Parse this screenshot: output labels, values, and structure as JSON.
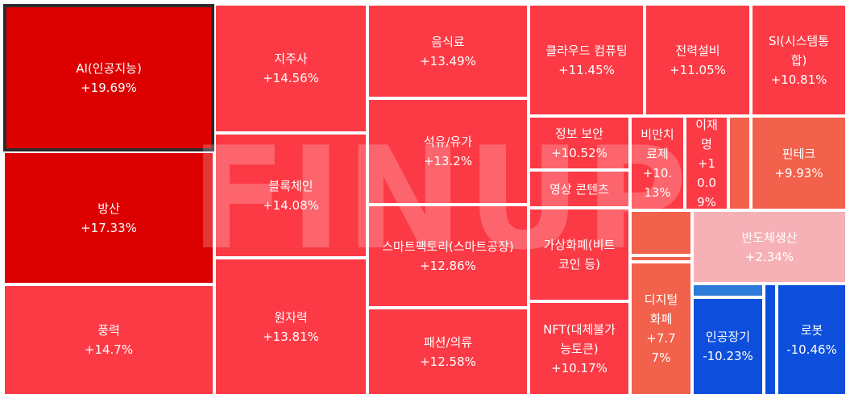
{
  "chart_data": {
    "type": "treemap",
    "watermark": "FINUP",
    "colors": {
      "up_strong": "#dc0000",
      "up": "#fc3a45",
      "up_mid": "#f2614b",
      "up_light": "#f6b1b6",
      "down": "#0d4fdc",
      "down_light": "#2d7bd8"
    },
    "items": [
      {
        "name": "AI(인공지능)",
        "value": "+19.69%",
        "color": "up_strong"
      },
      {
        "name": "방산",
        "value": "+17.33%",
        "color": "up_strong"
      },
      {
        "name": "풍력",
        "value": "+14.7%",
        "color": "up"
      },
      {
        "name": "지주사",
        "value": "+14.56%",
        "color": "up"
      },
      {
        "name": "블록체인",
        "value": "+14.08%",
        "color": "up"
      },
      {
        "name": "원자력",
        "value": "+13.81%",
        "color": "up"
      },
      {
        "name": "음식료",
        "value": "+13.49%",
        "color": "up"
      },
      {
        "name": "석유/유가",
        "value": "+13.2%",
        "color": "up"
      },
      {
        "name": "스마트팩토리(스마트공장)",
        "value": "+12.86%",
        "color": "up"
      },
      {
        "name": "패션/의류",
        "value": "+12.58%",
        "color": "up"
      },
      {
        "name": "클라우드 컴퓨팅",
        "value": "+11.45%",
        "color": "up"
      },
      {
        "name": "전력설비",
        "value": "+11.05%",
        "color": "up"
      },
      {
        "name": "SI(시스템통합)",
        "value": "+10.81%",
        "color": "up"
      },
      {
        "name": "정보 보안",
        "value": "+10.52%",
        "color": "up"
      },
      {
        "name": "비만치료제",
        "value": "+10.13%",
        "color": "up"
      },
      {
        "name": "이재명",
        "value": "+10.09%",
        "color": "up"
      },
      {
        "name": "핀테크",
        "value": "+9.93%",
        "color": "up_mid"
      },
      {
        "name": "영상 콘텐츠",
        "value": "",
        "color": "up"
      },
      {
        "name": "가상화폐(비트코인 등)",
        "value": "",
        "color": "up"
      },
      {
        "name": "NFT(대체불가능토큰)",
        "value": "+10.17%",
        "color": "up"
      },
      {
        "name": "디지털화폐",
        "value": "+7.77%",
        "color": "up_mid"
      },
      {
        "name": "반도체생산",
        "value": "+2.34%",
        "color": "up_light"
      },
      {
        "name": "인공장기",
        "value": "-10.23%",
        "color": "down"
      },
      {
        "name": "로봇",
        "value": "-10.46%",
        "color": "down"
      },
      {
        "name": "",
        "value": "",
        "color": "up_mid"
      },
      {
        "name": "",
        "value": "",
        "color": "up_mid"
      },
      {
        "name": "",
        "value": "",
        "color": "up_mid"
      },
      {
        "name": "",
        "value": "",
        "color": "up_mid"
      },
      {
        "name": "",
        "value": "",
        "color": "down_light"
      },
      {
        "name": "",
        "value": "",
        "color": "down"
      }
    ]
  }
}
